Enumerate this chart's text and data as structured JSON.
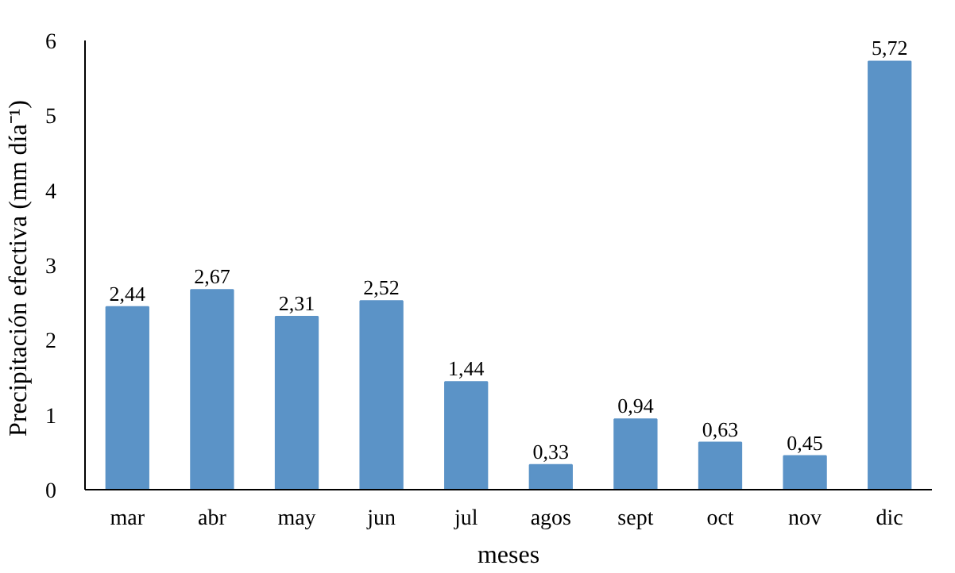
{
  "chart_data": {
    "type": "bar",
    "xlabel": "meses",
    "ylabel": "Precipitación efectiva  (mm día⁻¹)",
    "categories": [
      "mar",
      "abr",
      "may",
      "jun",
      "jul",
      "agos",
      "sept",
      "oct",
      "nov",
      "dic"
    ],
    "values": [
      2.44,
      2.67,
      2.31,
      2.52,
      1.44,
      0.33,
      0.94,
      0.63,
      0.45,
      5.72
    ],
    "value_labels": [
      "2,44",
      "2,67",
      "2,31",
      "2,52",
      "1,44",
      "0,33",
      "0,94",
      "0,63",
      "0,45",
      "5,72"
    ],
    "color": "#5b93c7",
    "ylim": [
      0,
      6
    ],
    "yticks": [
      0,
      1,
      2,
      3,
      4,
      5,
      6
    ],
    "grid": false
  }
}
